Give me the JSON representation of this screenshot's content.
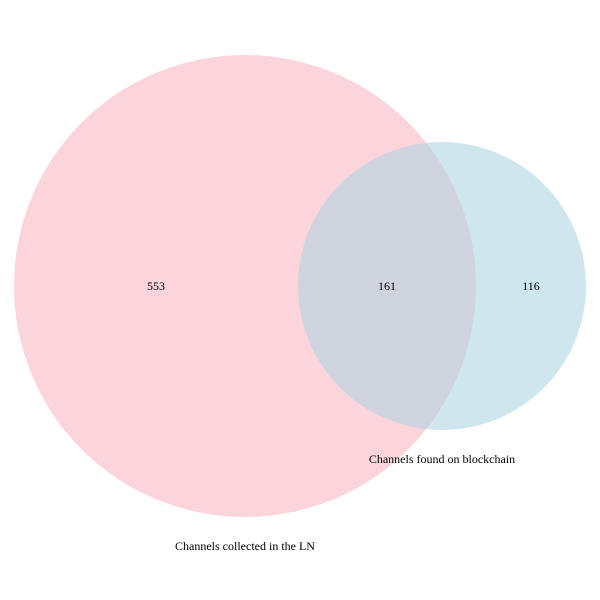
{
  "chart_data": {
    "type": "venn",
    "sets": [
      {
        "id": "ln",
        "label": "Channels collected in the LN",
        "only_count": "553",
        "color": "#fcd5dc"
      },
      {
        "id": "blockchain",
        "label": "Channels found on blockchain",
        "only_count": "116",
        "color": "#cfe6ee"
      }
    ],
    "intersection": {
      "count": "161",
      "color": "#d0d4de"
    }
  }
}
